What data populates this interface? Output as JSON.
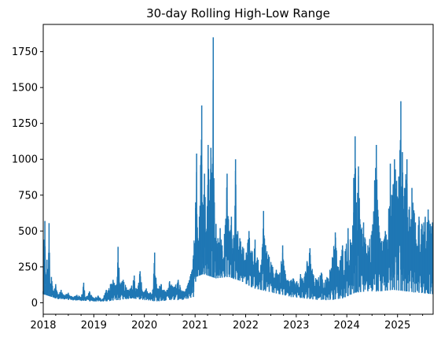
{
  "chart_data": {
    "type": "line",
    "title": "30-day Rolling High-Low Range",
    "xlabel": "",
    "ylabel": "",
    "x_axis": {
      "kind": "date",
      "range": [
        "2018-01-01",
        "2025-09-15"
      ],
      "tick_labels": [
        "2018",
        "2019",
        "2020",
        "2021",
        "2022",
        "2023",
        "2024",
        "2025"
      ],
      "tick_dates": [
        "2018-01-01",
        "2019-01-01",
        "2020-01-01",
        "2021-01-01",
        "2022-01-01",
        "2023-01-01",
        "2024-01-01",
        "2025-01-01"
      ],
      "minor_ticks": "quarterly"
    },
    "y_axis": {
      "range": [
        -80,
        1940
      ],
      "ticks": [
        0,
        250,
        500,
        750,
        1000,
        1250,
        1500,
        1750
      ]
    },
    "grid": false,
    "legend": "none",
    "series": [
      {
        "color": "#1f77b4",
        "points": [
          [
            "2018-01-01",
            80
          ],
          [
            "2018-01-05",
            440
          ],
          [
            "2018-01-09",
            150
          ],
          [
            "2018-01-13",
            570
          ],
          [
            "2018-01-20",
            120
          ],
          [
            "2018-01-28",
            300
          ],
          [
            "2018-02-05",
            200
          ],
          [
            "2018-02-12",
            555
          ],
          [
            "2018-02-20",
            120
          ],
          [
            "2018-03-01",
            180
          ],
          [
            "2018-03-15",
            80
          ],
          [
            "2018-04-01",
            130
          ],
          [
            "2018-04-20",
            60
          ],
          [
            "2018-05-10",
            90
          ],
          [
            "2018-06-01",
            50
          ],
          [
            "2018-07-01",
            70
          ],
          [
            "2018-08-01",
            40
          ],
          [
            "2018-09-01",
            55
          ],
          [
            "2018-10-01",
            40
          ],
          [
            "2018-10-20",
            140
          ],
          [
            "2018-11-01",
            40
          ],
          [
            "2018-12-01",
            80
          ],
          [
            "2019-01-01",
            30
          ],
          [
            "2019-02-01",
            50
          ],
          [
            "2019-03-01",
            20
          ],
          [
            "2019-04-01",
            90
          ],
          [
            "2019-05-01",
            130
          ],
          [
            "2019-05-20",
            160
          ],
          [
            "2019-06-15",
            120
          ],
          [
            "2019-06-25",
            390
          ],
          [
            "2019-07-10",
            130
          ],
          [
            "2019-08-01",
            160
          ],
          [
            "2019-09-01",
            90
          ],
          [
            "2019-10-01",
            120
          ],
          [
            "2019-10-20",
            190
          ],
          [
            "2019-11-01",
            100
          ],
          [
            "2019-12-01",
            220
          ],
          [
            "2019-12-20",
            80
          ],
          [
            "2020-01-15",
            100
          ],
          [
            "2020-02-01",
            60
          ],
          [
            "2020-03-01",
            90
          ],
          [
            "2020-03-15",
            350
          ],
          [
            "2020-04-01",
            100
          ],
          [
            "2020-05-01",
            130
          ],
          [
            "2020-06-01",
            80
          ],
          [
            "2020-07-01",
            150
          ],
          [
            "2020-08-01",
            110
          ],
          [
            "2020-09-01",
            160
          ],
          [
            "2020-10-01",
            80
          ],
          [
            "2020-11-01",
            100
          ],
          [
            "2020-12-01",
            200
          ],
          [
            "2020-12-20",
            330
          ],
          [
            "2021-01-05",
            700
          ],
          [
            "2021-01-12",
            1040
          ],
          [
            "2021-01-20",
            450
          ],
          [
            "2021-02-01",
            600
          ],
          [
            "2021-02-10",
            960
          ],
          [
            "2021-02-18",
            1375
          ],
          [
            "2021-02-25",
            600
          ],
          [
            "2021-03-10",
            900
          ],
          [
            "2021-03-25",
            500
          ],
          [
            "2021-04-05",
            1100
          ],
          [
            "2021-04-15",
            700
          ],
          [
            "2021-04-25",
            1080
          ],
          [
            "2021-05-05",
            800
          ],
          [
            "2021-05-12",
            1850
          ],
          [
            "2021-05-20",
            700
          ],
          [
            "2021-06-01",
            550
          ],
          [
            "2021-06-15",
            450
          ],
          [
            "2021-07-01",
            520
          ],
          [
            "2021-07-15",
            400
          ],
          [
            "2021-08-01",
            480
          ],
          [
            "2021-08-20",
            900
          ],
          [
            "2021-09-05",
            500
          ],
          [
            "2021-09-20",
            600
          ],
          [
            "2021-10-01",
            380
          ],
          [
            "2021-10-20",
            1000
          ],
          [
            "2021-11-05",
            500
          ],
          [
            "2021-11-20",
            450
          ],
          [
            "2021-12-10",
            390
          ],
          [
            "2022-01-05",
            350
          ],
          [
            "2022-01-25",
            500
          ],
          [
            "2022-02-15",
            350
          ],
          [
            "2022-03-10",
            440
          ],
          [
            "2022-04-01",
            300
          ],
          [
            "2022-04-25",
            260
          ],
          [
            "2022-05-10",
            640
          ],
          [
            "2022-05-25",
            400
          ],
          [
            "2022-06-20",
            320
          ],
          [
            "2022-07-15",
            250
          ],
          [
            "2022-08-10",
            230
          ],
          [
            "2022-09-05",
            210
          ],
          [
            "2022-09-25",
            400
          ],
          [
            "2022-10-15",
            200
          ],
          [
            "2022-11-10",
            150
          ],
          [
            "2022-12-10",
            170
          ],
          [
            "2023-01-05",
            150
          ],
          [
            "2023-02-01",
            200
          ],
          [
            "2023-03-01",
            180
          ],
          [
            "2023-03-20",
            290
          ],
          [
            "2023-04-10",
            380
          ],
          [
            "2023-05-01",
            200
          ],
          [
            "2023-06-01",
            160
          ],
          [
            "2023-07-01",
            210
          ],
          [
            "2023-08-01",
            160
          ],
          [
            "2023-09-01",
            230
          ],
          [
            "2023-10-10",
            490
          ],
          [
            "2023-11-01",
            250
          ],
          [
            "2023-12-01",
            400
          ],
          [
            "2023-12-20",
            360
          ],
          [
            "2024-01-10",
            520
          ],
          [
            "2024-02-01",
            420
          ],
          [
            "2024-02-20",
            870
          ],
          [
            "2024-03-01",
            1160
          ],
          [
            "2024-03-10",
            700
          ],
          [
            "2024-03-25",
            950
          ],
          [
            "2024-04-10",
            500
          ],
          [
            "2024-05-01",
            560
          ],
          [
            "2024-06-01",
            400
          ],
          [
            "2024-07-01",
            500
          ],
          [
            "2024-08-01",
            1100
          ],
          [
            "2024-08-15",
            600
          ],
          [
            "2024-09-10",
            430
          ],
          [
            "2024-10-05",
            500
          ],
          [
            "2024-10-20",
            440
          ],
          [
            "2024-11-10",
            970
          ],
          [
            "2024-11-25",
            750
          ],
          [
            "2024-12-10",
            1000
          ],
          [
            "2024-12-25",
            850
          ],
          [
            "2025-01-10",
            880
          ],
          [
            "2025-01-25",
            1405
          ],
          [
            "2025-02-05",
            1050
          ],
          [
            "2025-02-20",
            800
          ],
          [
            "2025-03-10",
            1000
          ],
          [
            "2025-03-25",
            650
          ],
          [
            "2025-04-15",
            800
          ],
          [
            "2025-05-10",
            560
          ],
          [
            "2025-06-05",
            600
          ],
          [
            "2025-06-25",
            550
          ],
          [
            "2025-07-20",
            600
          ],
          [
            "2025-08-10",
            650
          ],
          [
            "2025-08-25",
            550
          ],
          [
            "2025-09-10",
            560
          ]
        ],
        "floor": [
          [
            "2018-01-01",
            60
          ],
          [
            "2018-02-01",
            50
          ],
          [
            "2018-04-01",
            30
          ],
          [
            "2018-07-01",
            20
          ],
          [
            "2018-10-01",
            15
          ],
          [
            "2019-01-01",
            10
          ],
          [
            "2019-04-01",
            10
          ],
          [
            "2019-07-01",
            20
          ],
          [
            "2019-10-01",
            30
          ],
          [
            "2020-01-01",
            20
          ],
          [
            "2020-04-01",
            10
          ],
          [
            "2020-07-01",
            20
          ],
          [
            "2020-10-01",
            20
          ],
          [
            "2020-12-20",
            40
          ],
          [
            "2021-01-10",
            180
          ],
          [
            "2021-03-01",
            200
          ],
          [
            "2021-06-01",
            170
          ],
          [
            "2021-09-01",
            180
          ],
          [
            "2021-12-01",
            150
          ],
          [
            "2022-03-01",
            100
          ],
          [
            "2022-06-01",
            80
          ],
          [
            "2022-09-01",
            60
          ],
          [
            "2022-12-01",
            40
          ],
          [
            "2023-03-01",
            30
          ],
          [
            "2023-06-01",
            20
          ],
          [
            "2023-09-01",
            20
          ],
          [
            "2023-12-01",
            30
          ],
          [
            "2024-03-01",
            70
          ],
          [
            "2024-06-01",
            80
          ],
          [
            "2024-09-01",
            80
          ],
          [
            "2024-12-01",
            90
          ],
          [
            "2025-03-01",
            80
          ],
          [
            "2025-06-01",
            70
          ],
          [
            "2025-09-10",
            60
          ]
        ]
      }
    ]
  }
}
